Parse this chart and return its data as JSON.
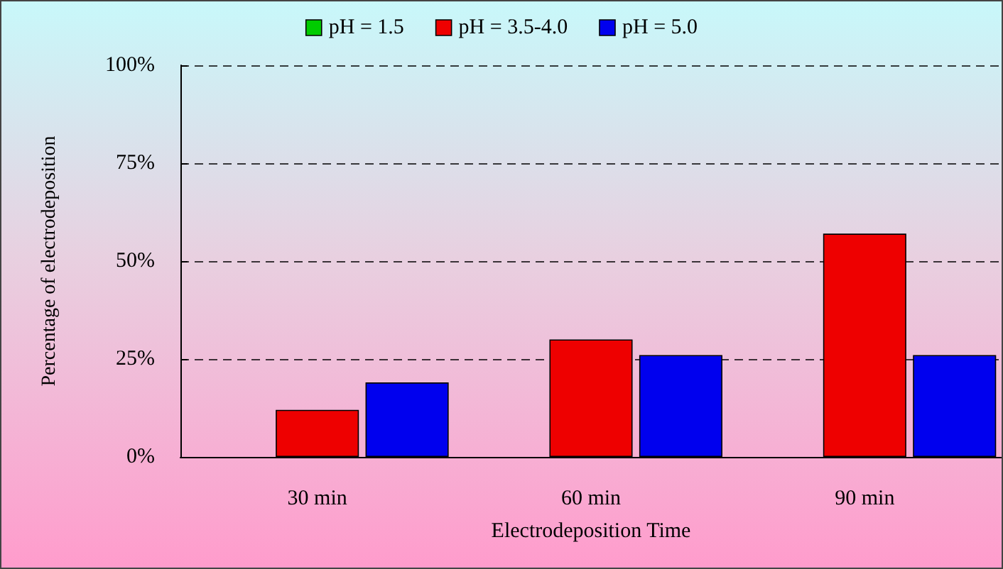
{
  "chart_data": {
    "type": "bar",
    "xlabel": "Electrodeposition Time",
    "ylabel": "Percentage of electrodeposition",
    "categories": [
      "30 min",
      "60 min",
      "90 min"
    ],
    "series": [
      {
        "name": "pH = 1.5",
        "color": "#00cc00",
        "values": [
          null,
          null,
          null
        ]
      },
      {
        "name": "pH = 3.5-4.0",
        "color": "#ee0000",
        "values": [
          12,
          30,
          57
        ]
      },
      {
        "name": "pH = 5.0",
        "color": "#0000ee",
        "values": [
          19,
          26,
          26
        ]
      }
    ],
    "ylim": [
      0,
      100
    ],
    "yticks": [
      {
        "value": 0,
        "label": "0%"
      },
      {
        "value": 25,
        "label": "25%"
      },
      {
        "value": 50,
        "label": "50%"
      },
      {
        "value": 75,
        "label": "75%"
      },
      {
        "value": 100,
        "label": "100%"
      }
    ],
    "grid": "y",
    "legend": "top"
  }
}
